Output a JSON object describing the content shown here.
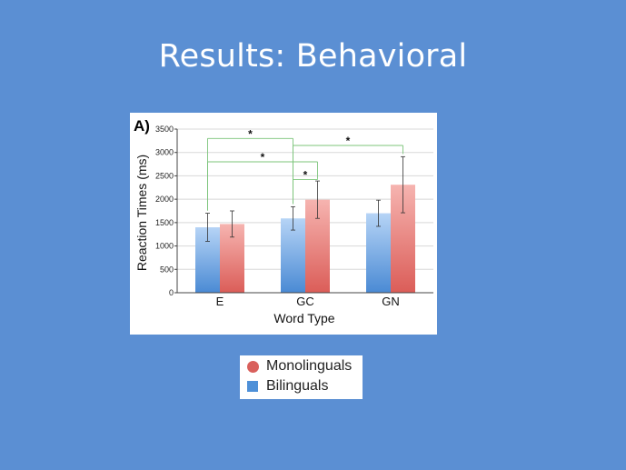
{
  "slide": {
    "title": "Results: Behavioral"
  },
  "chart_data": {
    "type": "bar",
    "panel_label": "A)",
    "categories": [
      "E",
      "GC",
      "GN"
    ],
    "series": [
      {
        "name": "Bilinguals",
        "values": [
          1400,
          1590,
          1700
        ],
        "error": [
          300,
          250,
          280
        ],
        "color": "#4e90d8"
      },
      {
        "name": "Monolinguals",
        "values": [
          1470,
          1990,
          2310
        ],
        "error": [
          280,
          400,
          600
        ],
        "color": "#d9605c"
      }
    ],
    "xlabel": "Word Type",
    "ylabel": "Reaction Times (ms)",
    "ylim": [
      0,
      3500
    ],
    "yticks": [
      0,
      500,
      1000,
      1500,
      2000,
      2500,
      3000,
      3500
    ],
    "grid": true,
    "significance": [
      {
        "from": 0,
        "to": 2,
        "y": 3300,
        "label": "*"
      },
      {
        "from": 2,
        "to": 5,
        "y": 3150,
        "label": "*"
      },
      {
        "from": 0,
        "to": 3,
        "y": 2800,
        "label": "*"
      },
      {
        "from": 2,
        "to": 3,
        "y": 2420,
        "label": "*"
      }
    ],
    "legend": {
      "placement": "below",
      "items": [
        "Monolinguals",
        "Bilinguals"
      ]
    }
  }
}
